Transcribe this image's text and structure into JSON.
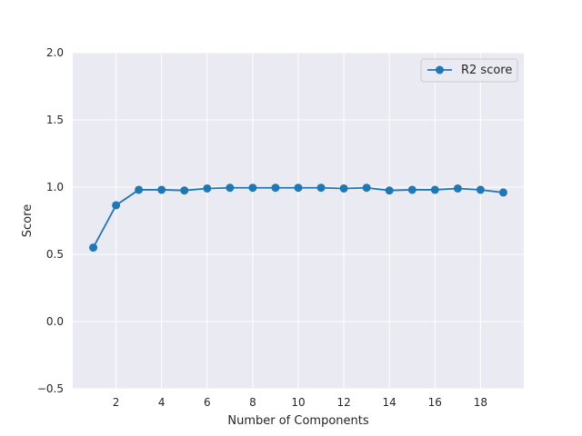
{
  "chart_data": {
    "type": "line",
    "title": "",
    "xlabel": "Number of Components",
    "ylabel": "Score",
    "xlim": [
      0.1,
      19.9
    ],
    "ylim": [
      -0.5,
      2.0
    ],
    "x_ticks": [
      2,
      4,
      6,
      8,
      10,
      12,
      14,
      16,
      18
    ],
    "y_ticks": [
      -0.5,
      0.0,
      0.5,
      1.0,
      1.5,
      2.0
    ],
    "x_tick_labels": [
      "2",
      "4",
      "6",
      "8",
      "10",
      "12",
      "14",
      "16",
      "18"
    ],
    "y_tick_labels": [
      "−0.5",
      "0.0",
      "0.5",
      "1.0",
      "1.5",
      "2.0"
    ],
    "grid": true,
    "legend_position": "top-right",
    "background": "#eaeaf2",
    "grid_color": "#ffffff",
    "series": [
      {
        "name": "R2 score",
        "color": "#1f77b4",
        "marker": "circle",
        "x": [
          1,
          2,
          3,
          4,
          5,
          6,
          7,
          8,
          9,
          10,
          11,
          12,
          13,
          14,
          15,
          16,
          17,
          18,
          19
        ],
        "y": [
          0.55,
          0.865,
          0.98,
          0.98,
          0.975,
          0.99,
          0.995,
          0.995,
          0.995,
          0.995,
          0.995,
          0.99,
          0.995,
          0.975,
          0.98,
          0.98,
          0.99,
          0.98,
          0.96
        ]
      }
    ]
  }
}
